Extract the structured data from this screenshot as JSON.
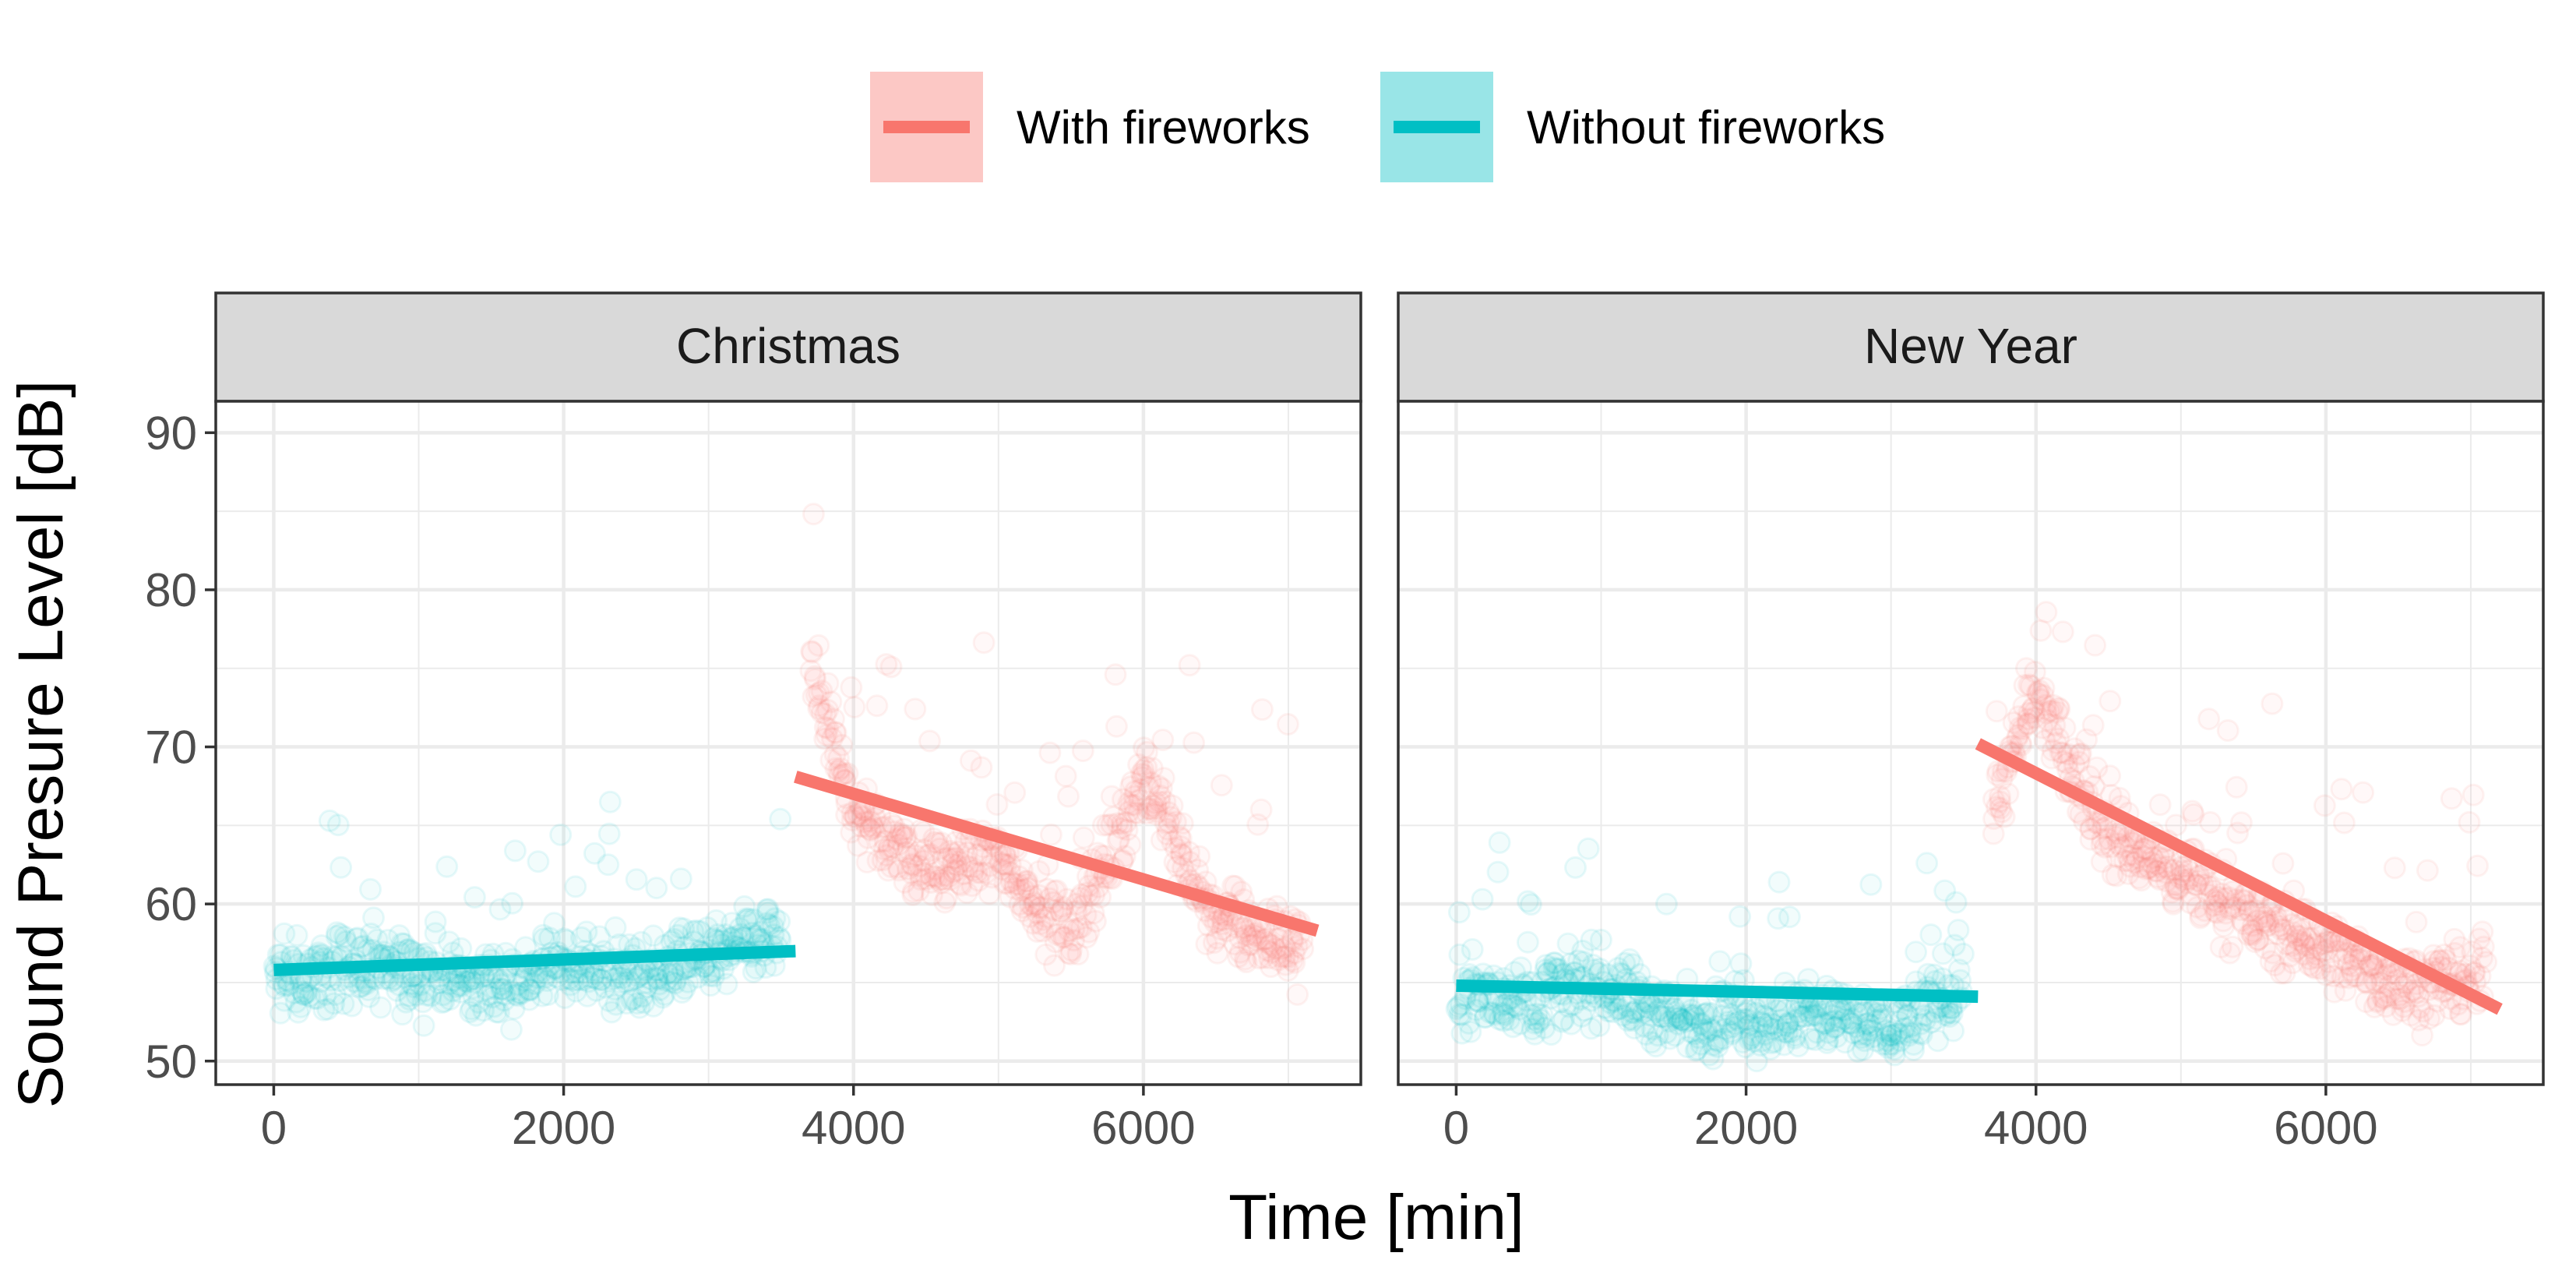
{
  "chart_data": {
    "type": "scatter",
    "xlabel": "Time [min]",
    "ylabel": "Sound Presure Level [dB]",
    "xlim": [
      -400,
      7500
    ],
    "ylim": [
      48.5,
      92
    ],
    "xticks": [
      0,
      2000,
      4000,
      6000
    ],
    "yticks": [
      50,
      60,
      70,
      80,
      90
    ],
    "grid": true,
    "legend_position": "top",
    "legend": [
      {
        "label": "With fireworks",
        "color": "#F8766D"
      },
      {
        "label": "Without fireworks",
        "color": "#00BFC4"
      }
    ],
    "panels": [
      {
        "title": "Christmas",
        "fit_lines": [
          {
            "series": "Without fireworks",
            "x": [
              0,
              3600
            ],
            "y": [
              55.8,
              57.0
            ]
          },
          {
            "series": "With fireworks",
            "x": [
              3600,
              7200
            ],
            "y": [
              68.1,
              58.3
            ]
          }
        ],
        "point_profile": {
          "Without fireworks": [
            {
              "x": 0,
              "y": 55
            },
            {
              "x": 500,
              "y": 56
            },
            {
              "x": 1000,
              "y": 55.5
            },
            {
              "x": 1500,
              "y": 55
            },
            {
              "x": 2000,
              "y": 56
            },
            {
              "x": 2500,
              "y": 55.5
            },
            {
              "x": 3000,
              "y": 56.5
            },
            {
              "x": 3500,
              "y": 58
            }
          ],
          "With fireworks": [
            {
              "x": 3700,
              "y": 75
            },
            {
              "x": 4000,
              "y": 66
            },
            {
              "x": 4500,
              "y": 62
            },
            {
              "x": 5000,
              "y": 63
            },
            {
              "x": 5500,
              "y": 58
            },
            {
              "x": 6000,
              "y": 68
            },
            {
              "x": 6500,
              "y": 59
            },
            {
              "x": 7100,
              "y": 57
            }
          ]
        }
      },
      {
        "title": "New Year",
        "fit_lines": [
          {
            "series": "Without fireworks",
            "x": [
              0,
              3600
            ],
            "y": [
              54.8,
              54.1
            ]
          },
          {
            "series": "With fireworks",
            "x": [
              3600,
              7200
            ],
            "y": [
              70.2,
              53.3
            ]
          }
        ],
        "point_profile": {
          "Without fireworks": [
            {
              "x": 0,
              "y": 54.5
            },
            {
              "x": 500,
              "y": 54
            },
            {
              "x": 1000,
              "y": 55
            },
            {
              "x": 1500,
              "y": 52.5
            },
            {
              "x": 2000,
              "y": 52.5
            },
            {
              "x": 2500,
              "y": 53
            },
            {
              "x": 3000,
              "y": 52
            },
            {
              "x": 3500,
              "y": 55
            }
          ],
          "With fireworks": [
            {
              "x": 3700,
              "y": 66
            },
            {
              "x": 4000,
              "y": 73
            },
            {
              "x": 4500,
              "y": 64
            },
            {
              "x": 5000,
              "y": 62
            },
            {
              "x": 5500,
              "y": 59
            },
            {
              "x": 6000,
              "y": 57
            },
            {
              "x": 6500,
              "y": 55
            },
            {
              "x": 7100,
              "y": 55
            }
          ]
        }
      }
    ]
  }
}
